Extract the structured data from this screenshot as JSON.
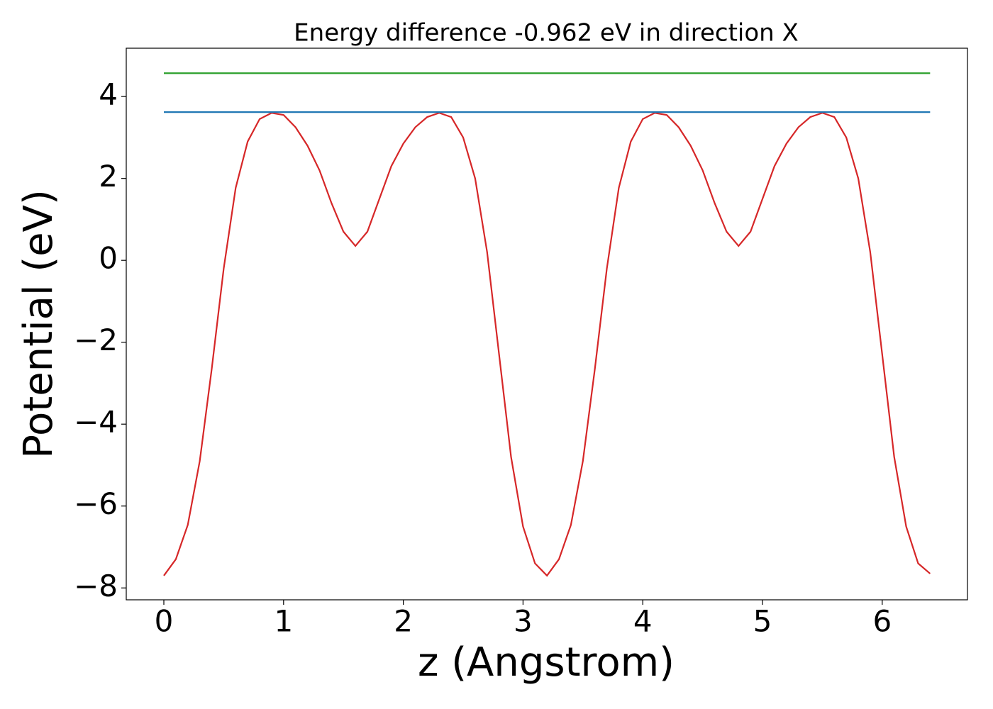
{
  "chart_data": {
    "type": "line",
    "title": "Energy difference -0.962 eV in direction X",
    "x_label": "z (Angstrom)",
    "y_label": "Potential (eV)",
    "xlim": [
      -0.314,
      6.712
    ],
    "ylim": [
      -8.29,
      5.18
    ],
    "xticks": [
      0,
      1,
      2,
      3,
      4,
      5,
      6
    ],
    "yticks": [
      {
        "value": -8,
        "label": "−8"
      },
      {
        "value": -6,
        "label": "−6"
      },
      {
        "value": -4,
        "label": "−4"
      },
      {
        "value": -2,
        "label": "−2"
      },
      0,
      2,
      4
    ],
    "series": [
      {
        "color": "#d62728",
        "x": [
          0,
          0.1,
          0.2,
          0.3,
          0.4,
          0.5,
          0.6,
          0.7,
          0.8,
          0.9,
          1.0,
          1.1,
          1.2,
          1.3,
          1.4,
          1.5,
          1.6,
          1.7,
          1.8,
          1.9,
          2.0,
          2.1,
          2.2,
          2.3,
          2.4,
          2.5,
          2.6,
          2.7,
          2.8,
          2.9,
          3.0,
          3.1,
          3.2,
          3.3,
          3.4,
          3.5,
          3.6,
          3.7,
          3.8,
          3.9,
          4.0,
          4.1,
          4.2,
          4.3,
          4.4,
          4.5,
          4.6,
          4.7,
          4.8,
          4.9,
          5.0,
          5.1,
          5.2,
          5.3,
          5.4,
          5.5,
          5.6,
          5.7,
          5.8,
          5.9,
          6.0,
          6.1,
          6.2,
          6.3,
          6.4
        ],
        "values": [
          -7.7,
          -7.3,
          -6.46,
          -4.9,
          -2.65,
          -0.2,
          1.77,
          2.9,
          3.45,
          3.6,
          3.55,
          3.25,
          2.8,
          2.2,
          1.4,
          0.7,
          0.35,
          0.7,
          1.5,
          2.3,
          2.85,
          3.25,
          3.5,
          3.6,
          3.5,
          3.0,
          2.0,
          0.2,
          -2.3,
          -4.8,
          -6.5,
          -7.4,
          -7.7,
          -7.3,
          -6.46,
          -4.9,
          -2.65,
          -0.2,
          1.77,
          2.9,
          3.45,
          3.6,
          3.55,
          3.25,
          2.8,
          2.2,
          1.4,
          0.7,
          0.35,
          0.7,
          1.5,
          2.3,
          2.85,
          3.25,
          3.5,
          3.6,
          3.5,
          3.0,
          2.0,
          0.2,
          -2.3,
          -4.8,
          -6.5,
          -7.4,
          -7.65
        ]
      },
      {
        "color": "#1f77b4",
        "x": [
          0,
          6.4
        ],
        "values": [
          3.62,
          3.62
        ]
      },
      {
        "color": "#2ca02c",
        "x": [
          0,
          6.4
        ],
        "values": [
          4.57,
          4.57
        ]
      }
    ]
  }
}
